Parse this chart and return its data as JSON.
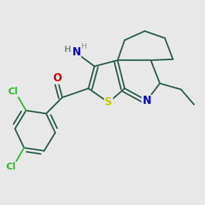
{
  "background_color": "#e8e8e8",
  "bond_color": "#2d5e52",
  "bond_width": 1.6,
  "atom_colors": {
    "S": "#cccc00",
    "N": "#0000dd",
    "O": "#dd0000",
    "Cl": "#33bb33",
    "H": "#7a9a8a",
    "C": "#2d5e52"
  }
}
